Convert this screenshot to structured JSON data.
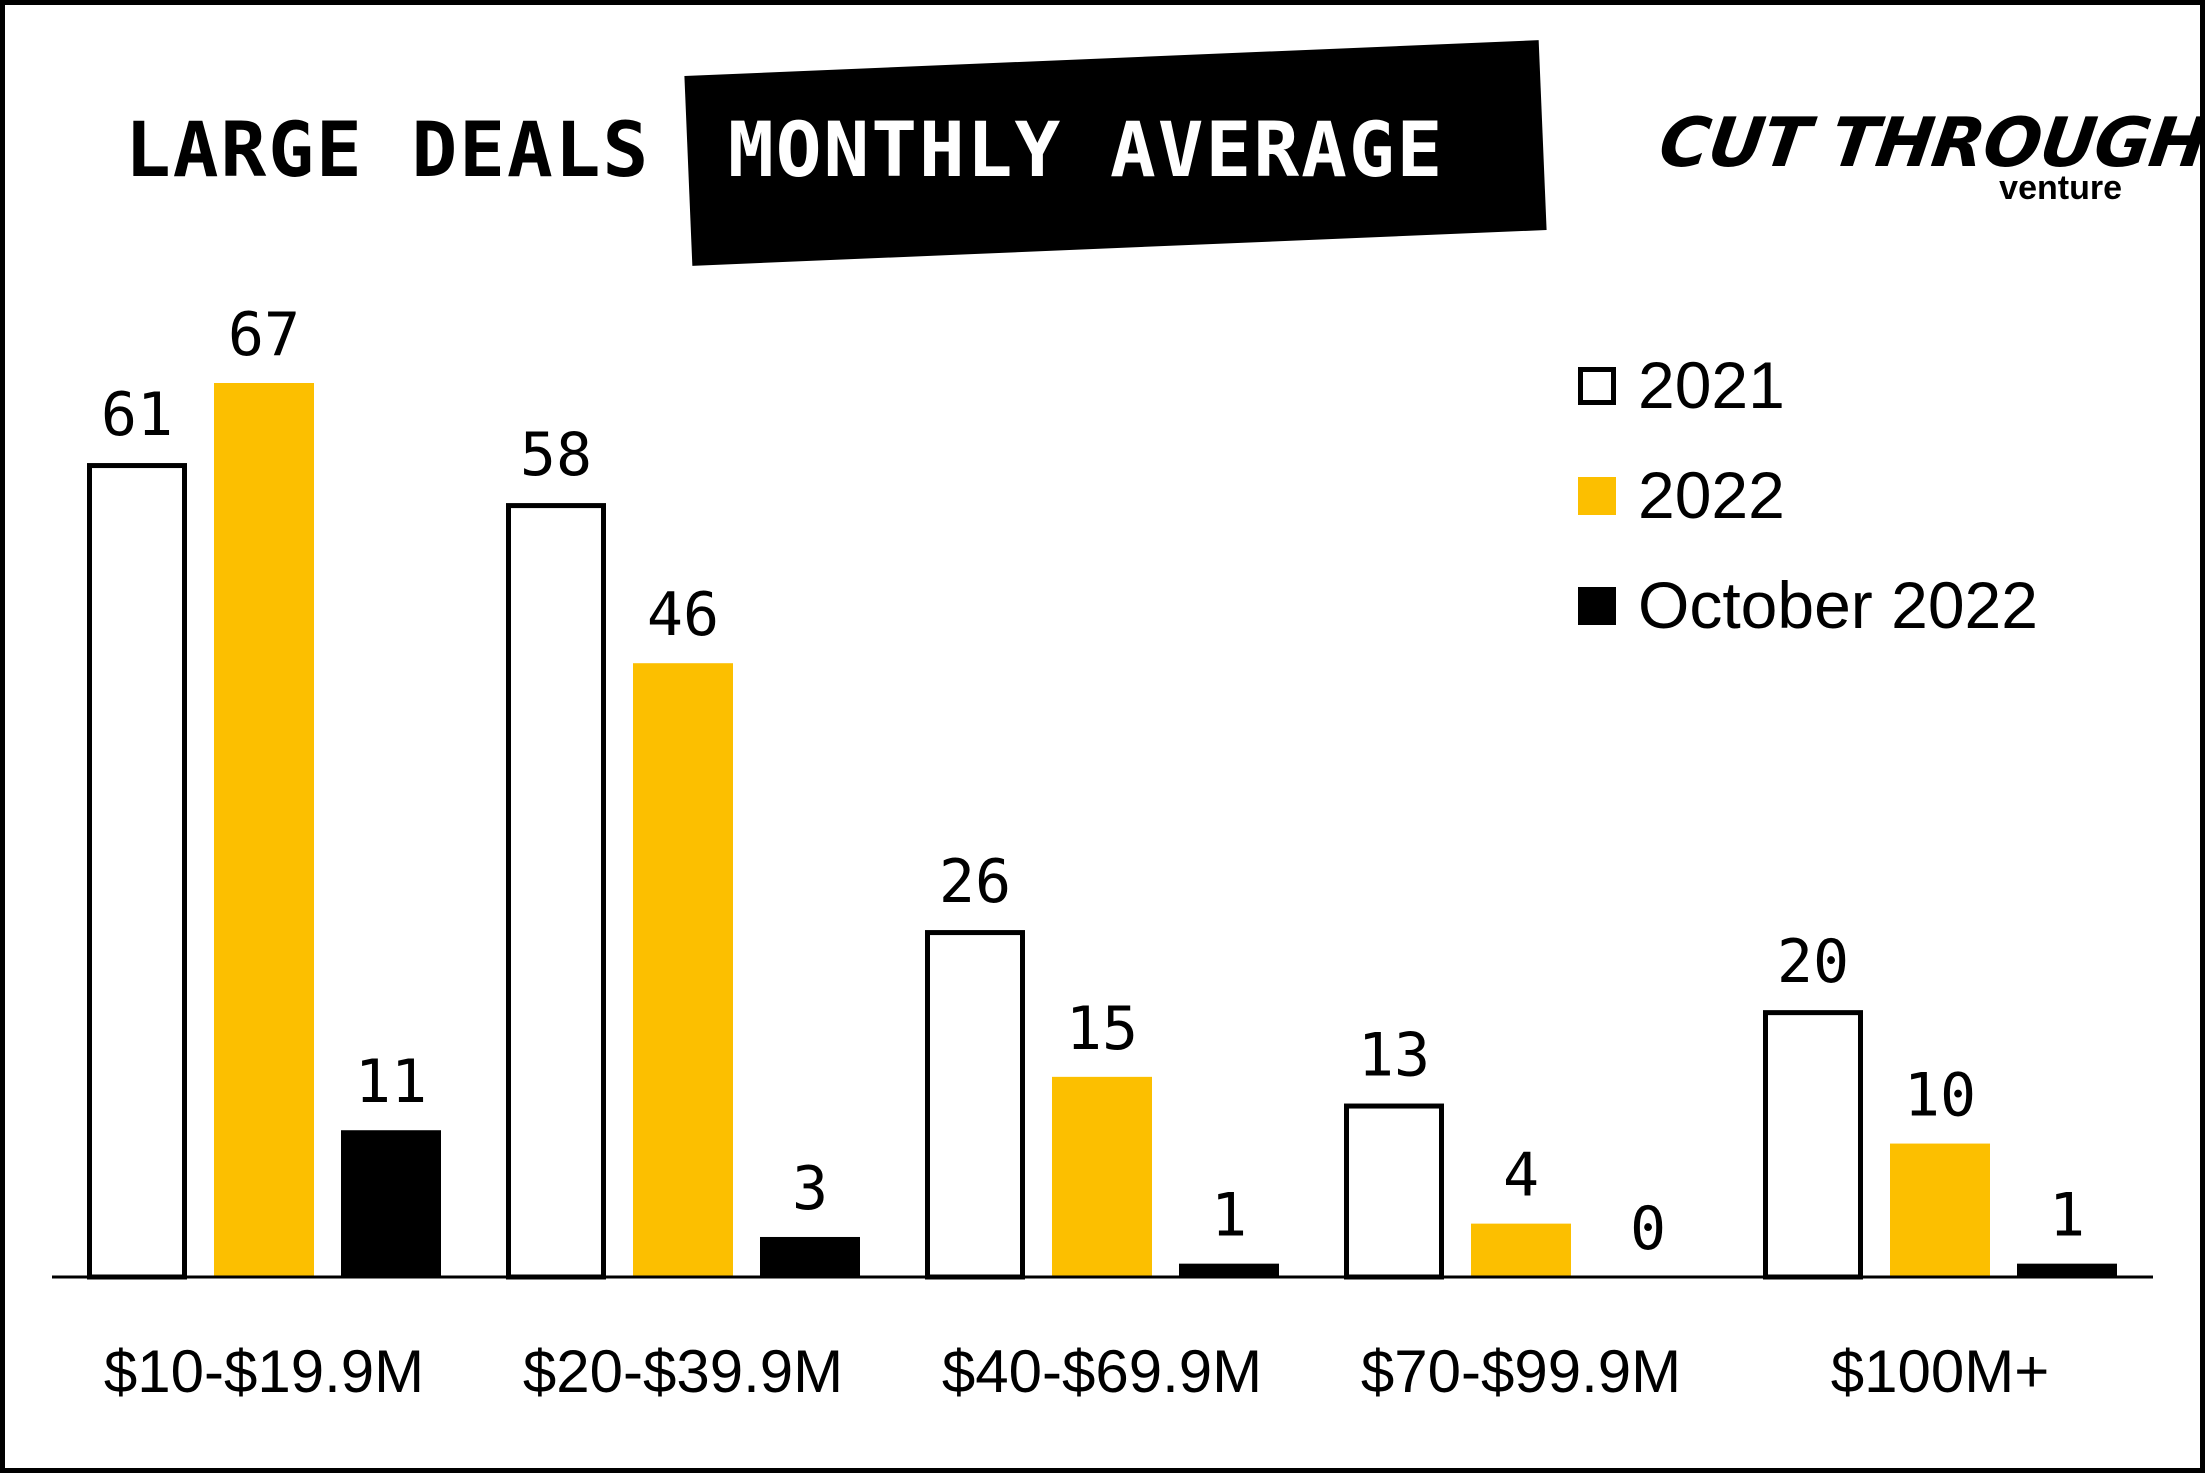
{
  "header": {
    "title_plain": "LARGE DEALS",
    "title_highlight": "MONTHLY AVERAGE"
  },
  "logo": {
    "main_text": "CUT THROUGH",
    "sub_text": "venture"
  },
  "colors": {
    "series_2021_fill": "#ffffff",
    "series_2022_fill": "#fcbf00",
    "series_oct2022_fill": "#000000",
    "outline": "#000000"
  },
  "legend": {
    "items": [
      {
        "label": "2021",
        "swatch": "outline"
      },
      {
        "label": "2022",
        "swatch": "yellow"
      },
      {
        "label": "October 2022",
        "swatch": "black"
      }
    ]
  },
  "chart_data": {
    "type": "bar",
    "title": "LARGE DEALS MONTHLY AVERAGE",
    "categories": [
      "$10-$19.9M",
      "$20-$39.9M",
      "$40-$69.9M",
      "$70-$99.9M",
      "$100M+"
    ],
    "series": [
      {
        "name": "2021",
        "values": [
          61,
          58,
          26,
          13,
          20
        ]
      },
      {
        "name": "2022",
        "values": [
          67,
          46,
          15,
          4,
          10
        ]
      },
      {
        "name": "October 2022",
        "values": [
          11,
          3,
          1,
          0,
          1
        ]
      }
    ],
    "ylim": [
      0,
      67
    ],
    "grid": false,
    "legend_position": "top-right",
    "data_labels": true
  }
}
